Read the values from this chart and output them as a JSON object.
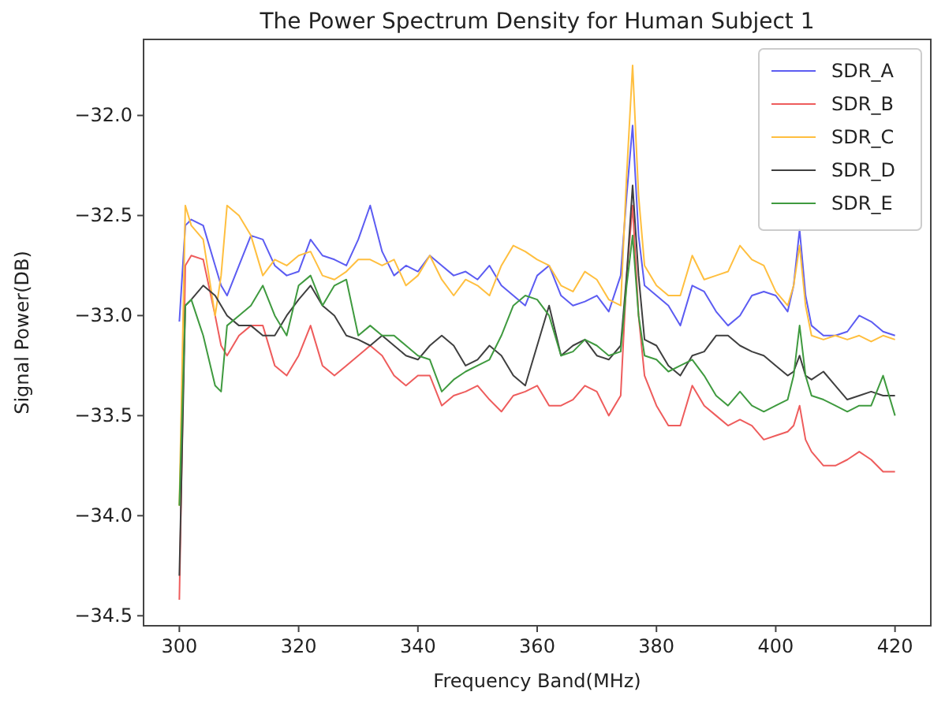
{
  "chart_data": {
    "type": "line",
    "title": "The Power Spectrum Density for Human Subject 1",
    "xlabel": "Frequency Band(MHz)",
    "ylabel": "Signal Power(DB)",
    "x": [
      300,
      301,
      302,
      304,
      306,
      307,
      308,
      310,
      312,
      314,
      316,
      318,
      320,
      322,
      324,
      326,
      328,
      330,
      332,
      334,
      336,
      338,
      340,
      342,
      344,
      346,
      348,
      350,
      352,
      354,
      356,
      358,
      360,
      362,
      364,
      366,
      368,
      370,
      372,
      374,
      375,
      376,
      377,
      378,
      380,
      382,
      384,
      386,
      388,
      390,
      392,
      394,
      396,
      398,
      400,
      402,
      403,
      404,
      405,
      406,
      408,
      410,
      412,
      414,
      416,
      418,
      420
    ],
    "xlim": [
      294,
      426
    ],
    "xticks": [
      300,
      320,
      340,
      360,
      380,
      400,
      420
    ],
    "ylim": [
      -34.55,
      -31.62
    ],
    "yticks": [
      {
        "value": -34.5,
        "label": "−34.5"
      },
      {
        "value": -34,
        "label": "−34.0"
      },
      {
        "value": -33.5,
        "label": "−33.5"
      },
      {
        "value": -33,
        "label": "−33.0"
      },
      {
        "value": -32.5,
        "label": "−32.5"
      },
      {
        "value": -32,
        "label": "−32.0"
      }
    ],
    "legend": "top right",
    "grid": false,
    "series": [
      {
        "name": "SDR_A",
        "color": "#5c5cf2",
        "values": [
          -33.03,
          -32.55,
          -32.52,
          -32.55,
          -32.75,
          -32.85,
          -32.9,
          -32.75,
          -32.6,
          -32.62,
          -32.75,
          -32.8,
          -32.78,
          -32.62,
          -32.7,
          -32.72,
          -32.75,
          -32.62,
          -32.45,
          -32.68,
          -32.8,
          -32.75,
          -32.78,
          -32.7,
          -32.75,
          -32.8,
          -32.78,
          -32.82,
          -32.75,
          -32.85,
          -32.9,
          -32.95,
          -32.8,
          -32.75,
          -32.9,
          -32.95,
          -32.93,
          -32.9,
          -32.98,
          -32.8,
          -32.4,
          -32.05,
          -32.6,
          -32.85,
          -32.9,
          -32.95,
          -33.05,
          -32.85,
          -32.88,
          -32.98,
          -33.05,
          -33.0,
          -32.9,
          -32.88,
          -32.9,
          -32.98,
          -32.85,
          -32.57,
          -32.9,
          -33.05,
          -33.1,
          -33.1,
          -33.08,
          -33.0,
          -33.03,
          -33.08,
          -33.1
        ]
      },
      {
        "name": "SDR_B",
        "color": "#ee5c5c",
        "values": [
          -34.42,
          -32.75,
          -32.7,
          -32.72,
          -33.0,
          -33.15,
          -33.2,
          -33.1,
          -33.05,
          -33.05,
          -33.25,
          -33.3,
          -33.2,
          -33.05,
          -33.25,
          -33.3,
          -33.25,
          -33.2,
          -33.15,
          -33.2,
          -33.3,
          -33.35,
          -33.3,
          -33.3,
          -33.45,
          -33.4,
          -33.38,
          -33.35,
          -33.42,
          -33.48,
          -33.4,
          -33.38,
          -33.35,
          -33.45,
          -33.45,
          -33.42,
          -33.35,
          -33.38,
          -33.5,
          -33.4,
          -32.8,
          -32.45,
          -33.0,
          -33.3,
          -33.45,
          -33.55,
          -33.55,
          -33.35,
          -33.45,
          -33.5,
          -33.55,
          -33.52,
          -33.55,
          -33.62,
          -33.6,
          -33.58,
          -33.55,
          -33.45,
          -33.62,
          -33.68,
          -33.75,
          -33.75,
          -33.72,
          -33.68,
          -33.72,
          -33.78,
          -33.78
        ]
      },
      {
        "name": "SDR_C",
        "color": "#ffbf3f",
        "values": [
          -33.95,
          -32.45,
          -32.55,
          -32.62,
          -33.0,
          -32.8,
          -32.45,
          -32.5,
          -32.6,
          -32.8,
          -32.72,
          -32.75,
          -32.7,
          -32.68,
          -32.8,
          -32.82,
          -32.78,
          -32.72,
          -32.72,
          -32.75,
          -32.72,
          -32.85,
          -32.8,
          -32.7,
          -32.82,
          -32.9,
          -32.82,
          -32.85,
          -32.9,
          -32.75,
          -32.65,
          -32.68,
          -32.72,
          -32.75,
          -32.85,
          -32.88,
          -32.78,
          -32.82,
          -32.92,
          -32.95,
          -32.3,
          -31.75,
          -32.4,
          -32.75,
          -32.85,
          -32.9,
          -32.9,
          -32.7,
          -32.82,
          -32.8,
          -32.78,
          -32.65,
          -32.72,
          -32.75,
          -32.88,
          -32.95,
          -32.85,
          -32.65,
          -32.95,
          -33.1,
          -33.12,
          -33.1,
          -33.12,
          -33.1,
          -33.13,
          -33.1,
          -33.12
        ]
      },
      {
        "name": "SDR_D",
        "color": "#3f3f3f",
        "values": [
          -34.3,
          -32.95,
          -32.92,
          -32.85,
          -32.9,
          -32.95,
          -33.0,
          -33.05,
          -33.05,
          -33.1,
          -33.1,
          -33.0,
          -32.92,
          -32.85,
          -32.95,
          -33.0,
          -33.1,
          -33.12,
          -33.15,
          -33.1,
          -33.15,
          -33.2,
          -33.22,
          -33.15,
          -33.1,
          -33.15,
          -33.25,
          -33.22,
          -33.15,
          -33.2,
          -33.3,
          -33.35,
          -33.15,
          -32.95,
          -33.2,
          -33.15,
          -33.12,
          -33.2,
          -33.22,
          -33.15,
          -32.8,
          -32.35,
          -32.8,
          -33.12,
          -33.15,
          -33.25,
          -33.3,
          -33.2,
          -33.18,
          -33.1,
          -33.1,
          -33.15,
          -33.18,
          -33.2,
          -33.25,
          -33.3,
          -33.28,
          -33.2,
          -33.3,
          -33.32,
          -33.28,
          -33.35,
          -33.42,
          -33.4,
          -33.38,
          -33.4,
          -33.4
        ]
      },
      {
        "name": "SDR_E",
        "color": "#3f9a3f",
        "values": [
          -33.95,
          -32.95,
          -32.92,
          -33.1,
          -33.35,
          -33.38,
          -33.05,
          -33.0,
          -32.95,
          -32.85,
          -33.0,
          -33.1,
          -32.85,
          -32.8,
          -32.95,
          -32.85,
          -32.82,
          -33.1,
          -33.05,
          -33.1,
          -33.1,
          -33.15,
          -33.2,
          -33.22,
          -33.38,
          -33.32,
          -33.28,
          -33.25,
          -33.22,
          -33.1,
          -32.95,
          -32.9,
          -32.92,
          -33.0,
          -33.2,
          -33.18,
          -33.12,
          -33.15,
          -33.2,
          -33.18,
          -32.85,
          -32.6,
          -33.0,
          -33.2,
          -33.22,
          -33.28,
          -33.25,
          -33.22,
          -33.3,
          -33.4,
          -33.45,
          -33.38,
          -33.45,
          -33.48,
          -33.45,
          -33.42,
          -33.3,
          -33.05,
          -33.3,
          -33.4,
          -33.42,
          -33.45,
          -33.48,
          -33.45,
          -33.45,
          -33.3,
          -33.5
        ]
      }
    ]
  }
}
